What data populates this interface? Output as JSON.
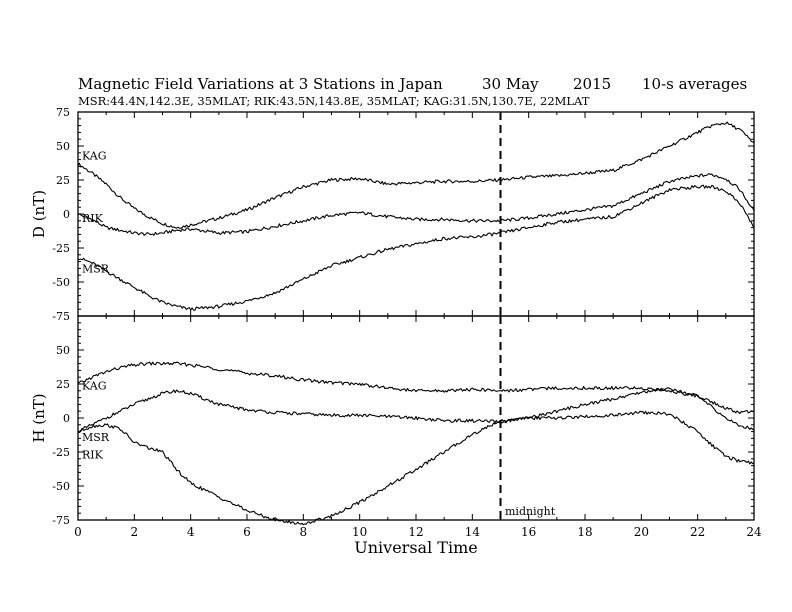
{
  "title": "Magnetic Field Variations at 3 Stations in Japan",
  "date": "30 May",
  "year": "2015",
  "averaging": "10-s averages",
  "stations_line": "MSR:44.4N,142.3E, 35MLAT;  RIK:43.5N,143.8E, 35MLAT;  KAG:31.5N,130.7E, 22MLAT",
  "midnight_label": "midnight",
  "colors": {
    "line": "#000000",
    "background": "#ffffff"
  },
  "chart_data": [
    {
      "type": "line",
      "panel": "top",
      "ylabel": "D (nT)",
      "xlabel": "",
      "xlim": [
        0,
        24
      ],
      "ylim": [
        -75,
        75
      ],
      "xticks": [
        0,
        2,
        4,
        6,
        8,
        10,
        12,
        14,
        16,
        18,
        20,
        22,
        24
      ],
      "yticks": [
        -75,
        -50,
        -25,
        0,
        25,
        50,
        75
      ],
      "marker_x": 15,
      "series": [
        {
          "name": "KAG",
          "x": [
            0,
            0.5,
            1,
            1.5,
            2,
            2.5,
            3,
            3.5,
            4,
            5,
            6,
            7,
            8,
            9,
            10,
            11,
            12,
            13,
            14,
            15,
            16,
            17,
            18,
            19,
            20,
            21,
            22,
            22.5,
            23,
            23.5,
            24
          ],
          "y": [
            37,
            30,
            22,
            12,
            4,
            -2,
            -7,
            -10,
            -8,
            -3,
            3,
            12,
            20,
            25,
            26,
            22,
            23,
            24,
            24,
            25,
            27,
            28,
            30,
            32,
            40,
            50,
            60,
            65,
            67,
            62,
            52
          ]
        },
        {
          "name": "RIK",
          "x": [
            0,
            0.5,
            1,
            1.5,
            2,
            2.5,
            3,
            3.5,
            4,
            5,
            6,
            7,
            8,
            9,
            10,
            11,
            12,
            13,
            14,
            15,
            16,
            17,
            18,
            19,
            20,
            21,
            22,
            22.5,
            23,
            23.5,
            24
          ],
          "y": [
            0,
            -4,
            -10,
            -12,
            -14,
            -15,
            -14,
            -12,
            -11,
            -14,
            -13,
            -9,
            -5,
            -1,
            1,
            -2,
            -4,
            -4,
            -5,
            -5,
            -3,
            0,
            3,
            6,
            15,
            24,
            28,
            29,
            26,
            18,
            2
          ]
        },
        {
          "name": "MSR",
          "x": [
            0,
            0.5,
            1,
            1.5,
            2,
            2.5,
            3,
            3.5,
            4,
            5,
            6,
            7,
            8,
            9,
            10,
            11,
            12,
            13,
            14,
            15,
            16,
            17,
            18,
            19,
            20,
            21,
            22,
            22.5,
            23,
            23.5,
            24
          ],
          "y": [
            -32,
            -36,
            -42,
            -48,
            -54,
            -60,
            -65,
            -68,
            -70,
            -68,
            -64,
            -58,
            -48,
            -38,
            -32,
            -26,
            -22,
            -18,
            -17,
            -14,
            -10,
            -6,
            -4,
            -2,
            8,
            18,
            20,
            20,
            17,
            8,
            -10
          ]
        }
      ],
      "series_label_y": {
        "KAG": 43,
        "RIK": -3,
        "MSR": -40
      }
    },
    {
      "type": "line",
      "panel": "bottom",
      "ylabel": "H (nT)",
      "xlabel": "Universal Time",
      "xlim": [
        0,
        24
      ],
      "ylim": [
        -75,
        75
      ],
      "xticks": [
        0,
        2,
        4,
        6,
        8,
        10,
        12,
        14,
        16,
        18,
        20,
        22,
        24
      ],
      "yticks": [
        -75,
        -50,
        -25,
        0,
        25,
        50,
        75
      ],
      "marker_x": 15,
      "series": [
        {
          "name": "KAG",
          "x": [
            0,
            0.5,
            1,
            1.5,
            2,
            2.5,
            3,
            3.5,
            4,
            5,
            6,
            7,
            8,
            9,
            10,
            11,
            12,
            13,
            14,
            15,
            16,
            17,
            18,
            19,
            20,
            21,
            22,
            22.5,
            23,
            23.5,
            24
          ],
          "y": [
            25,
            30,
            34,
            37,
            39,
            40,
            40,
            40,
            39,
            36,
            33,
            31,
            28,
            26,
            25,
            22,
            20,
            20,
            21,
            20,
            21,
            22,
            22,
            22,
            22,
            20,
            16,
            12,
            7,
            4,
            5
          ]
        },
        {
          "name": "RIK",
          "x": [
            0,
            0.5,
            1,
            1.5,
            2,
            2.5,
            3,
            3.5,
            4,
            5,
            6,
            7,
            8,
            9,
            10,
            11,
            12,
            13,
            14,
            15,
            16,
            17,
            18,
            19,
            20,
            21,
            22,
            22.5,
            23,
            23.5,
            24
          ],
          "y": [
            -10,
            -5,
            0,
            5,
            10,
            14,
            18,
            20,
            18,
            10,
            6,
            4,
            3,
            2,
            2,
            1,
            0,
            -2,
            -2,
            -3,
            0,
            5,
            10,
            14,
            19,
            22,
            16,
            8,
            0,
            -6,
            -8
          ]
        },
        {
          "name": "MSR",
          "x": [
            0,
            0.5,
            1,
            1.5,
            2,
            2.5,
            3,
            3.5,
            4,
            5,
            6,
            7,
            8,
            9,
            10,
            11,
            12,
            13,
            14,
            15,
            16,
            17,
            18,
            19,
            20,
            21,
            22,
            22.5,
            23,
            23.5,
            24
          ],
          "y": [
            -10,
            -6,
            -5,
            -8,
            -18,
            -22,
            -25,
            -38,
            -48,
            -58,
            -68,
            -75,
            -78,
            -72,
            -62,
            -50,
            -38,
            -25,
            -12,
            -2,
            0,
            0,
            1,
            2,
            4,
            3,
            -10,
            -20,
            -28,
            -32,
            -33
          ]
        }
      ],
      "series_label_y": {
        "KAG": 24,
        "MSR": -14,
        "RIK": -27
      }
    }
  ]
}
